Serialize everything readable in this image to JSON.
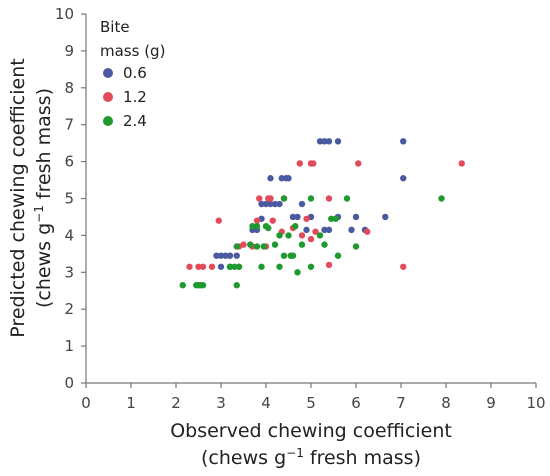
{
  "chart_data": {
    "type": "scatter",
    "xlabel": "Observed chewing coefficient",
    "xlabel_line2": {
      "pre": "(chews g",
      "sup": "−1",
      "post": " fresh mass)"
    },
    "ylabel": "Predicted chewing coefficient",
    "ylabel_line2": {
      "pre": "(chews g",
      "sup": "−1",
      "post": " fresh mass)"
    },
    "xlim": [
      0,
      10
    ],
    "ylim": [
      0,
      10
    ],
    "xticks": [
      "0",
      "1",
      "2",
      "3",
      "4",
      "5",
      "6",
      "7",
      "8",
      "9",
      "10"
    ],
    "yticks": [
      "0",
      "1",
      "2",
      "3",
      "4",
      "5",
      "6",
      "7",
      "8",
      "9",
      "10"
    ],
    "grid": false,
    "legend": {
      "title_line1": "Bite",
      "title_line2": "mass (g)",
      "placement": "top-left"
    },
    "series": [
      {
        "name": "0.6",
        "color": "#4b5aa0",
        "points": [
          [
            2.9,
            3.45
          ],
          [
            3.0,
            3.45
          ],
          [
            3.1,
            3.45
          ],
          [
            3.2,
            3.45
          ],
          [
            3.35,
            3.45
          ],
          [
            3.0,
            3.15
          ],
          [
            3.2,
            3.15
          ],
          [
            3.7,
            4.15
          ],
          [
            3.8,
            4.15
          ],
          [
            3.9,
            4.45
          ],
          [
            3.9,
            4.85
          ],
          [
            4.0,
            4.85
          ],
          [
            4.1,
            4.85
          ],
          [
            4.2,
            4.85
          ],
          [
            4.3,
            4.85
          ],
          [
            4.1,
            5.55
          ],
          [
            4.35,
            5.55
          ],
          [
            4.45,
            5.55
          ],
          [
            4.5,
            5.55
          ],
          [
            4.6,
            4.5
          ],
          [
            4.7,
            4.5
          ],
          [
            4.8,
            4.85
          ],
          [
            4.9,
            4.15
          ],
          [
            5.2,
            6.55
          ],
          [
            5.3,
            6.55
          ],
          [
            5.4,
            6.55
          ],
          [
            5.6,
            6.55
          ],
          [
            5.3,
            4.15
          ],
          [
            5.4,
            4.15
          ],
          [
            5.6,
            4.5
          ],
          [
            5.9,
            4.15
          ],
          [
            6.0,
            4.5
          ],
          [
            6.2,
            4.15
          ],
          [
            6.65,
            4.5
          ],
          [
            7.05,
            6.55
          ],
          [
            7.05,
            5.55
          ],
          [
            5.0,
            4.5
          ]
        ]
      },
      {
        "name": "1.2",
        "color": "#e34a5a",
        "points": [
          [
            2.3,
            3.15
          ],
          [
            2.5,
            3.15
          ],
          [
            2.6,
            3.15
          ],
          [
            2.8,
            3.15
          ],
          [
            3.4,
            3.15
          ],
          [
            2.95,
            4.4
          ],
          [
            3.4,
            3.7
          ],
          [
            3.5,
            3.75
          ],
          [
            3.8,
            4.4
          ],
          [
            3.85,
            5.0
          ],
          [
            4.05,
            5.0
          ],
          [
            4.1,
            5.0
          ],
          [
            4.15,
            4.4
          ],
          [
            4.35,
            4.1
          ],
          [
            4.4,
            5.0
          ],
          [
            4.6,
            4.2
          ],
          [
            4.75,
            5.95
          ],
          [
            4.8,
            4.0
          ],
          [
            4.9,
            4.45
          ],
          [
            5.0,
            3.9
          ],
          [
            5.0,
            5.95
          ],
          [
            5.05,
            5.95
          ],
          [
            5.1,
            4.1
          ],
          [
            5.4,
            5.0
          ],
          [
            5.4,
            3.2
          ],
          [
            6.05,
            5.95
          ],
          [
            6.25,
            4.1
          ],
          [
            7.05,
            3.15
          ],
          [
            8.35,
            5.95
          ],
          [
            4.0,
            3.7
          ],
          [
            3.7,
            3.7
          ]
        ]
      },
      {
        "name": "2.4",
        "color": "#1f9a2f",
        "points": [
          [
            2.15,
            2.65
          ],
          [
            2.45,
            2.65
          ],
          [
            2.5,
            2.65
          ],
          [
            2.55,
            2.65
          ],
          [
            2.6,
            2.65
          ],
          [
            3.35,
            2.65
          ],
          [
            3.2,
            3.15
          ],
          [
            3.3,
            3.15
          ],
          [
            3.35,
            3.7
          ],
          [
            3.4,
            3.15
          ],
          [
            3.65,
            3.75
          ],
          [
            3.7,
            4.25
          ],
          [
            3.8,
            4.25
          ],
          [
            3.8,
            3.7
          ],
          [
            3.9,
            3.15
          ],
          [
            3.95,
            3.7
          ],
          [
            4.0,
            4.25
          ],
          [
            4.05,
            4.2
          ],
          [
            4.2,
            3.75
          ],
          [
            4.3,
            3.15
          ],
          [
            4.3,
            4.0
          ],
          [
            4.4,
            3.45
          ],
          [
            4.4,
            5.0
          ],
          [
            4.5,
            4.0
          ],
          [
            4.55,
            3.45
          ],
          [
            4.6,
            3.45
          ],
          [
            4.65,
            4.25
          ],
          [
            4.7,
            3.0
          ],
          [
            4.8,
            3.75
          ],
          [
            5.0,
            3.15
          ],
          [
            5.0,
            5.0
          ],
          [
            5.2,
            4.0
          ],
          [
            5.3,
            3.75
          ],
          [
            5.45,
            4.45
          ],
          [
            5.55,
            4.45
          ],
          [
            5.6,
            3.45
          ],
          [
            5.8,
            5.0
          ],
          [
            6.0,
            3.7
          ],
          [
            7.9,
            5.0
          ]
        ]
      }
    ]
  }
}
